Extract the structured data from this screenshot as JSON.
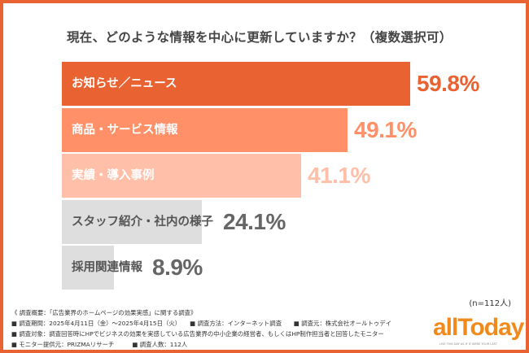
{
  "chart_data": {
    "type": "bar",
    "orientation": "horizontal",
    "title": "現在、どのような情報を中心に更新していますか？（複数選択可）",
    "categories": [
      "お知らせ／ニュース",
      "商品・サービス情報",
      "実績・導入事例",
      "スタッフ紹介・社内の様子",
      "採用関連情報"
    ],
    "values": [
      59.8,
      49.1,
      41.1,
      24.1,
      8.9
    ],
    "value_labels": [
      "59.8%",
      "49.1%",
      "41.1%",
      "24.1%",
      "8.9%"
    ],
    "unit": "%",
    "bar_colors": [
      "#E86232",
      "#FF9068",
      "#FFBFA8",
      "#DEDEDE",
      "#DEDEDE"
    ],
    "label_colors": [
      "#FFFFFF",
      "#FFFFFF",
      "#FFFFFF",
      "#555555",
      "#555555"
    ],
    "value_colors": [
      "#E86232",
      "#FF9068",
      "#FFBFA8",
      "#666666",
      "#666666"
    ],
    "grid": false,
    "sample_note": "(n=112人)"
  },
  "footer": {
    "lines": [
      "《 調査概要：「広告業界のホームページの効果実感」に関する調査》",
      "■ 調査期間：2025年4月11日（金）～2025年4月15日（火）　　■ 調査方法：インターネット調査　　■ 調査元：株式会社オールトゥデイ",
      "■ 調査対象：調査回答時にHPでビジネスの効果を実感している広告業界の中小企業の経営者、もしくはHP制作担当者と回答したモニター",
      "■ モニター提供元：PRIZMAリサーチ　　　■ 調査人数：112人"
    ]
  },
  "logo": {
    "text": "allToday",
    "tagline": "LIVE THIS DAY AS IF IT WERE YOUR LAST"
  },
  "colors": {
    "accent": "#E86232",
    "logo": "#F08A1C"
  }
}
